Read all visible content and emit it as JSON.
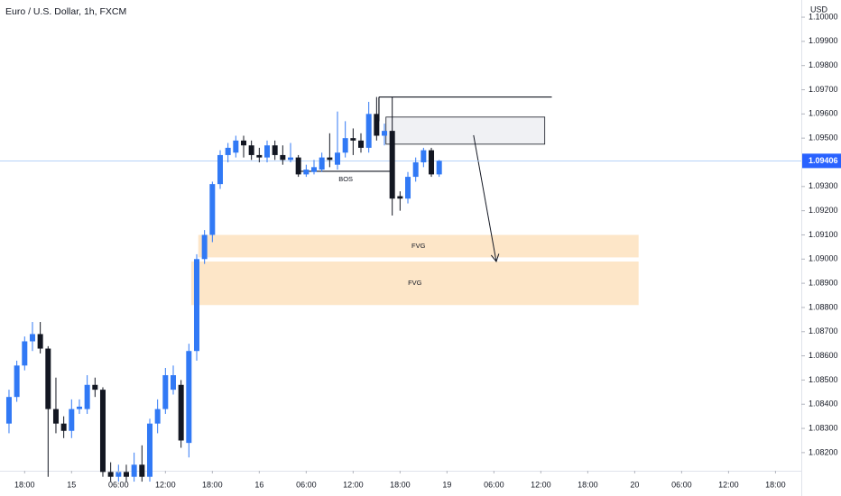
{
  "chart_data": {
    "type": "candlestick",
    "title": "Euro / U.S. Dollar, 1h, FXCM",
    "y_axis_label": "USD",
    "x": [
      0,
      1,
      2,
      3,
      4,
      5,
      6,
      7,
      8,
      9,
      10,
      11,
      12,
      13,
      14,
      15,
      16,
      17,
      18,
      19,
      20,
      21,
      22,
      23,
      24,
      25,
      26,
      27,
      28,
      29,
      30,
      31,
      32,
      33,
      34,
      35,
      36,
      37,
      38,
      39,
      40,
      41,
      42,
      43,
      44,
      45,
      46,
      47,
      48,
      49,
      50,
      51,
      52,
      53,
      54,
      55
    ],
    "open": [
      1.0832,
      1.0843,
      1.0856,
      1.0866,
      1.0869,
      1.0863,
      1.0838,
      1.0832,
      1.0829,
      1.0838,
      1.0838,
      1.0848,
      1.0846,
      1.0812,
      1.081,
      1.0812,
      1.081,
      1.0815,
      1.081,
      1.0832,
      1.0838,
      1.0846,
      1.0848,
      1.0824,
      1.0862,
      1.09,
      1.091,
      1.0931,
      1.0943,
      1.0944,
      1.0949,
      1.0947,
      1.0943,
      1.0942,
      1.0947,
      1.0943,
      1.0941,
      1.0942,
      1.0935,
      1.0936,
      1.0937,
      1.0942,
      1.0939,
      1.0944,
      1.095,
      1.0949,
      1.0946,
      1.096,
      1.0951,
      1.0953,
      1.0926,
      1.0925,
      1.0934,
      1.094,
      1.0945,
      1.0935
    ],
    "high": [
      1.0846,
      1.0858,
      1.0868,
      1.0874,
      1.0874,
      1.0864,
      1.0851,
      1.0835,
      1.0842,
      1.0842,
      1.0852,
      1.0851,
      1.0847,
      1.0816,
      1.0815,
      1.0815,
      1.082,
      1.0823,
      1.0834,
      1.0842,
      1.0855,
      1.0856,
      1.085,
      1.0865,
      1.0902,
      1.0912,
      1.0932,
      1.0945,
      1.0948,
      1.0951,
      1.0951,
      1.0949,
      1.0946,
      1.0949,
      1.0949,
      1.0947,
      1.0948,
      1.0943,
      1.0939,
      1.0941,
      1.0944,
      1.0952,
      1.0961,
      1.0957,
      1.0954,
      1.0952,
      1.0965,
      1.0967,
      1.0956,
      1.0967,
      1.0928,
      1.0936,
      1.0942,
      1.0946,
      1.0946,
      1.0941
    ],
    "low": [
      1.0828,
      1.0841,
      1.0854,
      1.0862,
      1.0861,
      1.081,
      1.0828,
      1.0826,
      1.0826,
      1.0836,
      1.0836,
      1.0843,
      1.081,
      1.0808,
      1.0808,
      1.0808,
      1.0808,
      1.0808,
      1.0808,
      1.0828,
      1.0836,
      1.0844,
      1.0822,
      1.0818,
      1.0858,
      1.0898,
      1.0907,
      1.0929,
      1.094,
      1.0942,
      1.0942,
      1.0941,
      1.094,
      1.094,
      1.0941,
      1.0939,
      1.094,
      1.0934,
      1.0934,
      1.0935,
      1.0936,
      1.0938,
      1.0937,
      1.0942,
      1.0943,
      1.0944,
      1.0944,
      1.0949,
      1.0947,
      1.0918,
      1.092,
      1.0923,
      1.0932,
      1.0938,
      1.0934,
      1.0934
    ],
    "close": [
      1.0843,
      1.0856,
      1.0866,
      1.0869,
      1.0863,
      1.0838,
      1.0832,
      1.0829,
      1.0838,
      1.0839,
      1.0848,
      1.0846,
      1.0812,
      1.081,
      1.0812,
      1.081,
      1.0815,
      1.081,
      1.0832,
      1.0838,
      1.0852,
      1.0852,
      1.0825,
      1.0862,
      1.09,
      1.091,
      1.0931,
      1.0943,
      1.0946,
      1.0949,
      1.0947,
      1.0943,
      1.0942,
      1.0947,
      1.0943,
      1.0941,
      1.0942,
      1.0935,
      1.0937,
      1.0938,
      1.0942,
      1.0941,
      1.0944,
      1.095,
      1.0949,
      1.0946,
      1.096,
      1.0951,
      1.0953,
      1.0925,
      1.0925,
      1.0934,
      1.094,
      1.0945,
      1.0935,
      1.09406
    ],
    "up_color": "#3179f5",
    "down_color": "#131722",
    "xlim": [
      -1.15,
      101.3
    ],
    "xticks": [
      {
        "value": 2,
        "label": "18:00"
      },
      {
        "value": 8,
        "label": "15"
      },
      {
        "value": 14,
        "label": "06:00"
      },
      {
        "value": 20,
        "label": "12:00"
      },
      {
        "value": 26,
        "label": "18:00"
      },
      {
        "value": 32,
        "label": "16"
      },
      {
        "value": 38,
        "label": "06:00"
      },
      {
        "value": 44,
        "label": "12:00"
      },
      {
        "value": 50,
        "label": "18:00"
      },
      {
        "value": 56,
        "label": "19"
      },
      {
        "value": 62,
        "label": "06:00"
      },
      {
        "value": 68,
        "label": "12:00"
      },
      {
        "value": 74,
        "label": "18:00"
      },
      {
        "value": 80,
        "label": "20"
      },
      {
        "value": 86,
        "label": "06:00"
      },
      {
        "value": 92,
        "label": "12:00"
      },
      {
        "value": 98,
        "label": "18:00"
      }
    ],
    "ylim": [
      1.08125,
      1.10071
    ],
    "yticks": [
      {
        "value": 1.082,
        "label": "1.08200"
      },
      {
        "value": 1.083,
        "label": "1.08300"
      },
      {
        "value": 1.084,
        "label": "1.08400"
      },
      {
        "value": 1.085,
        "label": "1.08500"
      },
      {
        "value": 1.086,
        "label": "1.08600"
      },
      {
        "value": 1.087,
        "label": "1.08700"
      },
      {
        "value": 1.088,
        "label": "1.08800"
      },
      {
        "value": 1.089,
        "label": "1.08900"
      },
      {
        "value": 1.09,
        "label": "1.09000"
      },
      {
        "value": 1.091,
        "label": "1.09100"
      },
      {
        "value": 1.092,
        "label": "1.09200"
      },
      {
        "value": 1.093,
        "label": "1.09300"
      },
      {
        "value": 1.095,
        "label": "1.09500"
      },
      {
        "value": 1.096,
        "label": "1.09600"
      },
      {
        "value": 1.097,
        "label": "1.09700"
      },
      {
        "value": 1.098,
        "label": "1.09800"
      },
      {
        "value": 1.099,
        "label": "1.09900"
      },
      {
        "value": 1.1,
        "label": "1.10000"
      }
    ],
    "grid": false,
    "last_price": {
      "value": 1.09406,
      "label": "1.09406",
      "color": "#2962ff"
    },
    "zones": [
      {
        "label": "FVG",
        "x0": 24.2,
        "x1": 80.5,
        "y0": 1.09007,
        "y1": 1.091,
        "color": "#fde6c8"
      },
      {
        "label": "FVG",
        "x0": 23.3,
        "x1": 80.5,
        "y0": 1.0881,
        "y1": 1.0899,
        "color": "#fde6c8"
      },
      {
        "x0": 48.2,
        "x1": 68.5,
        "y0": 1.09475,
        "y1": 1.09587,
        "color": "#f0f1f4"
      }
    ],
    "lines": [
      {
        "x0": 47.3,
        "x1": 69.4,
        "y0": 1.0967,
        "y1": 1.0967
      },
      {
        "x0": 47.3,
        "x1": 47.3,
        "y0": 1.0967,
        "y1": 1.0957
      },
      {
        "label": "BOS",
        "x0": 37.3,
        "x1": 48.8,
        "y0": 1.09363,
        "y1": 1.09363
      }
    ],
    "arrow": {
      "x0": 59.4,
      "x1": 62.3,
      "y0": 1.09512,
      "y1": 1.0899
    }
  }
}
